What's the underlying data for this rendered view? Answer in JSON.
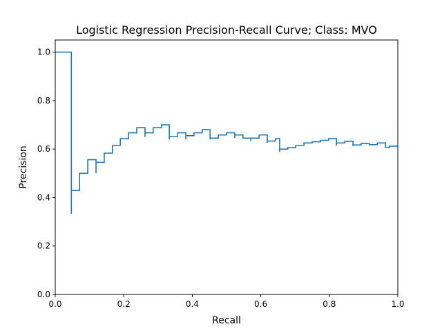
{
  "chart_data": {
    "type": "line",
    "title": "Logistic Regression Precision-Recall Curve; Class: MVO",
    "xlabel": "Recall",
    "ylabel": "Precision",
    "xlim": [
      0.0,
      1.0
    ],
    "ylim": [
      0.0,
      1.05
    ],
    "x_ticks": [
      0.0,
      0.2,
      0.4,
      0.6,
      0.8,
      1.0
    ],
    "y_ticks": [
      0.0,
      0.2,
      0.4,
      0.6,
      0.8,
      1.0
    ],
    "x_tick_labels": [
      "0.0",
      "0.2",
      "0.4",
      "0.6",
      "0.8",
      "1.0"
    ],
    "y_tick_labels": [
      "0.0",
      "0.2",
      "0.4",
      "0.6",
      "0.8",
      "1.0"
    ],
    "grid": false,
    "legend": "none",
    "line_style": "step",
    "line_color": "#1f77b4",
    "x": [
      0.0,
      0.047,
      0.047,
      0.047,
      0.047,
      0.071,
      0.071,
      0.095,
      0.095,
      0.119,
      0.119,
      0.119,
      0.143,
      0.143,
      0.167,
      0.167,
      0.19,
      0.19,
      0.214,
      0.214,
      0.238,
      0.238,
      0.262,
      0.262,
      0.262,
      0.286,
      0.286,
      0.31,
      0.31,
      0.333,
      0.333,
      0.333,
      0.357,
      0.357,
      0.381,
      0.381,
      0.381,
      0.405,
      0.405,
      0.429,
      0.429,
      0.452,
      0.452,
      0.452,
      0.476,
      0.476,
      0.5,
      0.5,
      0.524,
      0.524,
      0.524,
      0.548,
      0.548,
      0.571,
      0.571,
      0.571,
      0.595,
      0.595,
      0.619,
      0.619,
      0.619,
      0.643,
      0.643,
      0.655,
      0.655,
      0.655,
      0.679,
      0.679,
      0.702,
      0.702,
      0.726,
      0.726,
      0.75,
      0.75,
      0.774,
      0.774,
      0.798,
      0.798,
      0.821,
      0.821,
      0.821,
      0.845,
      0.845,
      0.869,
      0.869,
      0.869,
      0.893,
      0.893,
      0.917,
      0.917,
      0.94,
      0.94,
      0.964,
      0.964,
      0.976,
      0.976,
      1.0
    ],
    "y": [
      1.0,
      1.0,
      0.333,
      0.333,
      0.429,
      0.429,
      0.5,
      0.5,
      0.556,
      0.556,
      0.5,
      0.545,
      0.545,
      0.583,
      0.583,
      0.615,
      0.615,
      0.643,
      0.643,
      0.667,
      0.667,
      0.688,
      0.688,
      0.65,
      0.667,
      0.667,
      0.688,
      0.688,
      0.7,
      0.7,
      0.64,
      0.652,
      0.652,
      0.667,
      0.667,
      0.64,
      0.655,
      0.655,
      0.667,
      0.667,
      0.68,
      0.68,
      0.64,
      0.645,
      0.645,
      0.658,
      0.658,
      0.667,
      0.667,
      0.645,
      0.658,
      0.658,
      0.645,
      0.645,
      0.633,
      0.645,
      0.645,
      0.658,
      0.658,
      0.625,
      0.633,
      0.633,
      0.643,
      0.643,
      0.588,
      0.6,
      0.6,
      0.606,
      0.606,
      0.615,
      0.615,
      0.625,
      0.625,
      0.63,
      0.63,
      0.636,
      0.636,
      0.643,
      0.643,
      0.615,
      0.625,
      0.625,
      0.632,
      0.632,
      0.612,
      0.617,
      0.617,
      0.623,
      0.623,
      0.618,
      0.618,
      0.625,
      0.625,
      0.607,
      0.607,
      0.612,
      0.612
    ]
  }
}
